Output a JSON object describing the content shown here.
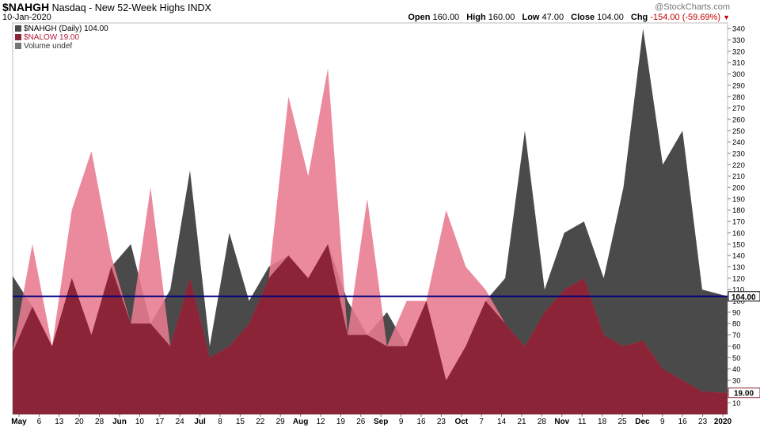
{
  "header": {
    "symbol": "$NAHGH",
    "name": "Nasdaq - New 52-Week Highs",
    "exchange": "INDX",
    "date": "10-Jan-2020",
    "credit": "@StockCharts.com",
    "open_label": "Open",
    "open": "160.00",
    "high_label": "High",
    "high": "160.00",
    "low_label": "Low",
    "low": "47.00",
    "close_label": "Close",
    "close": "104.00",
    "chg_label": "Chg",
    "chg": "-154.00 (-59.69%)"
  },
  "legend": {
    "highs": "$NAHGH (Daily) 104.00",
    "lows": "$NALOW 19.00",
    "volume": "Volume undef"
  },
  "colors": {
    "highs": "#4a4a4a",
    "lows_light": "#e8798f",
    "lows_dark": "#8b2436",
    "reference_line": "#000080",
    "lows_label_bg": "#8b2436"
  },
  "chart_data": {
    "type": "area",
    "x": [
      "2019-05-01",
      "2019-05-08",
      "2019-05-15",
      "2019-05-22",
      "2019-05-29",
      "2019-06-05",
      "2019-06-12",
      "2019-06-19",
      "2019-06-26",
      "2019-07-03",
      "2019-07-10",
      "2019-07-17",
      "2019-07-24",
      "2019-07-31",
      "2019-08-07",
      "2019-08-14",
      "2019-08-21",
      "2019-08-28",
      "2019-09-04",
      "2019-09-11",
      "2019-09-18",
      "2019-09-25",
      "2019-10-02",
      "2019-10-09",
      "2019-10-16",
      "2019-10-23",
      "2019-10-30",
      "2019-11-06",
      "2019-11-13",
      "2019-11-20",
      "2019-11-27",
      "2019-12-04",
      "2019-12-11",
      "2019-12-18",
      "2019-12-25",
      "2020-01-01",
      "2020-01-10"
    ],
    "series": [
      {
        "name": "$NAHGH",
        "values": [
          122,
          95,
          60,
          120,
          70,
          130,
          150,
          80,
          110,
          215,
          60,
          160,
          100,
          130,
          140,
          120,
          150,
          100,
          70,
          90,
          60,
          100,
          30,
          60,
          100,
          120,
          250,
          110,
          160,
          170,
          120,
          200,
          340,
          220,
          250,
          110,
          104
        ]
      },
      {
        "name": "$NALOW",
        "values": [
          55,
          150,
          60,
          180,
          232,
          140,
          80,
          200,
          60,
          120,
          50,
          60,
          80,
          120,
          280,
          210,
          305,
          70,
          190,
          60,
          100,
          100,
          180,
          130,
          110,
          80,
          60,
          90,
          110,
          120,
          70,
          60,
          65,
          40,
          30,
          20,
          19
        ]
      }
    ],
    "x_ticks": [
      "May",
      "6",
      "13",
      "20",
      "28",
      "Jun",
      "10",
      "17",
      "24",
      "Jul",
      "8",
      "15",
      "22",
      "29",
      "Aug",
      "12",
      "19",
      "26",
      "Sep",
      "9",
      "16",
      "23",
      "Oct",
      "7",
      "14",
      "21",
      "28",
      "Nov",
      "11",
      "18",
      "25",
      "Dec",
      "9",
      "16",
      "23",
      "2020"
    ],
    "y_ticks": [
      10,
      20,
      30,
      40,
      50,
      60,
      70,
      80,
      90,
      100,
      110,
      120,
      130,
      140,
      150,
      160,
      170,
      180,
      190,
      200,
      210,
      220,
      230,
      240,
      250,
      260,
      270,
      280,
      290,
      300,
      310,
      320,
      330,
      340
    ],
    "ylim": [
      0,
      345
    ],
    "reference_line": 104,
    "last_value_highs": "104.00",
    "last_value_lows": "19.00"
  }
}
